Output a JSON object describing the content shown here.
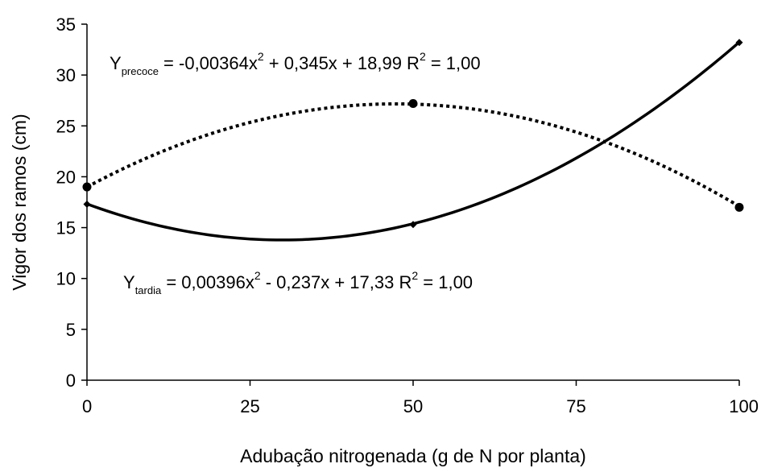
{
  "chart_data": {
    "type": "line",
    "xlabel": "Adubação nitrogenada (g de N por planta)",
    "ylabel": "Vigor dos ramos (cm)",
    "xlim": [
      0,
      100
    ],
    "ylim": [
      0,
      35
    ],
    "x_ticks": [
      "0",
      "25",
      "50",
      "75",
      "100"
    ],
    "y_ticks": [
      "0",
      "5",
      "10",
      "15",
      "20",
      "25",
      "30",
      "35"
    ],
    "grid": false,
    "series": [
      {
        "name": "precoce",
        "style": "dotted",
        "marker": "circle",
        "color": "#000000",
        "x": [
          0,
          50,
          100
        ],
        "y": [
          19.0,
          27.2,
          17.0
        ],
        "fit": {
          "a": -0.00364,
          "b": 0.345,
          "c": 18.99
        },
        "equation": {
          "lhs": "Y",
          "sub": "precoce",
          "rhs_a": " = -0,00364x",
          "rhs_a_sup": "2",
          "rhs_b": " + 0,345x + 18,99   R",
          "rhs_b_sup": "2",
          "rhs_c": " = 1,00"
        }
      },
      {
        "name": "tardia",
        "style": "solid",
        "marker": "diamond",
        "color": "#000000",
        "x": [
          0,
          50,
          100
        ],
        "y": [
          17.3,
          15.3,
          33.2
        ],
        "fit": {
          "a": 0.00396,
          "b": -0.237,
          "c": 17.33
        },
        "equation": {
          "lhs": "Y",
          "sub": "tardia",
          "rhs_a": " = 0,00396x",
          "rhs_a_sup": "2",
          "rhs_b": " - 0,237x + 17,33   R",
          "rhs_b_sup": "2",
          "rhs_c": " = 1,00"
        }
      }
    ]
  }
}
